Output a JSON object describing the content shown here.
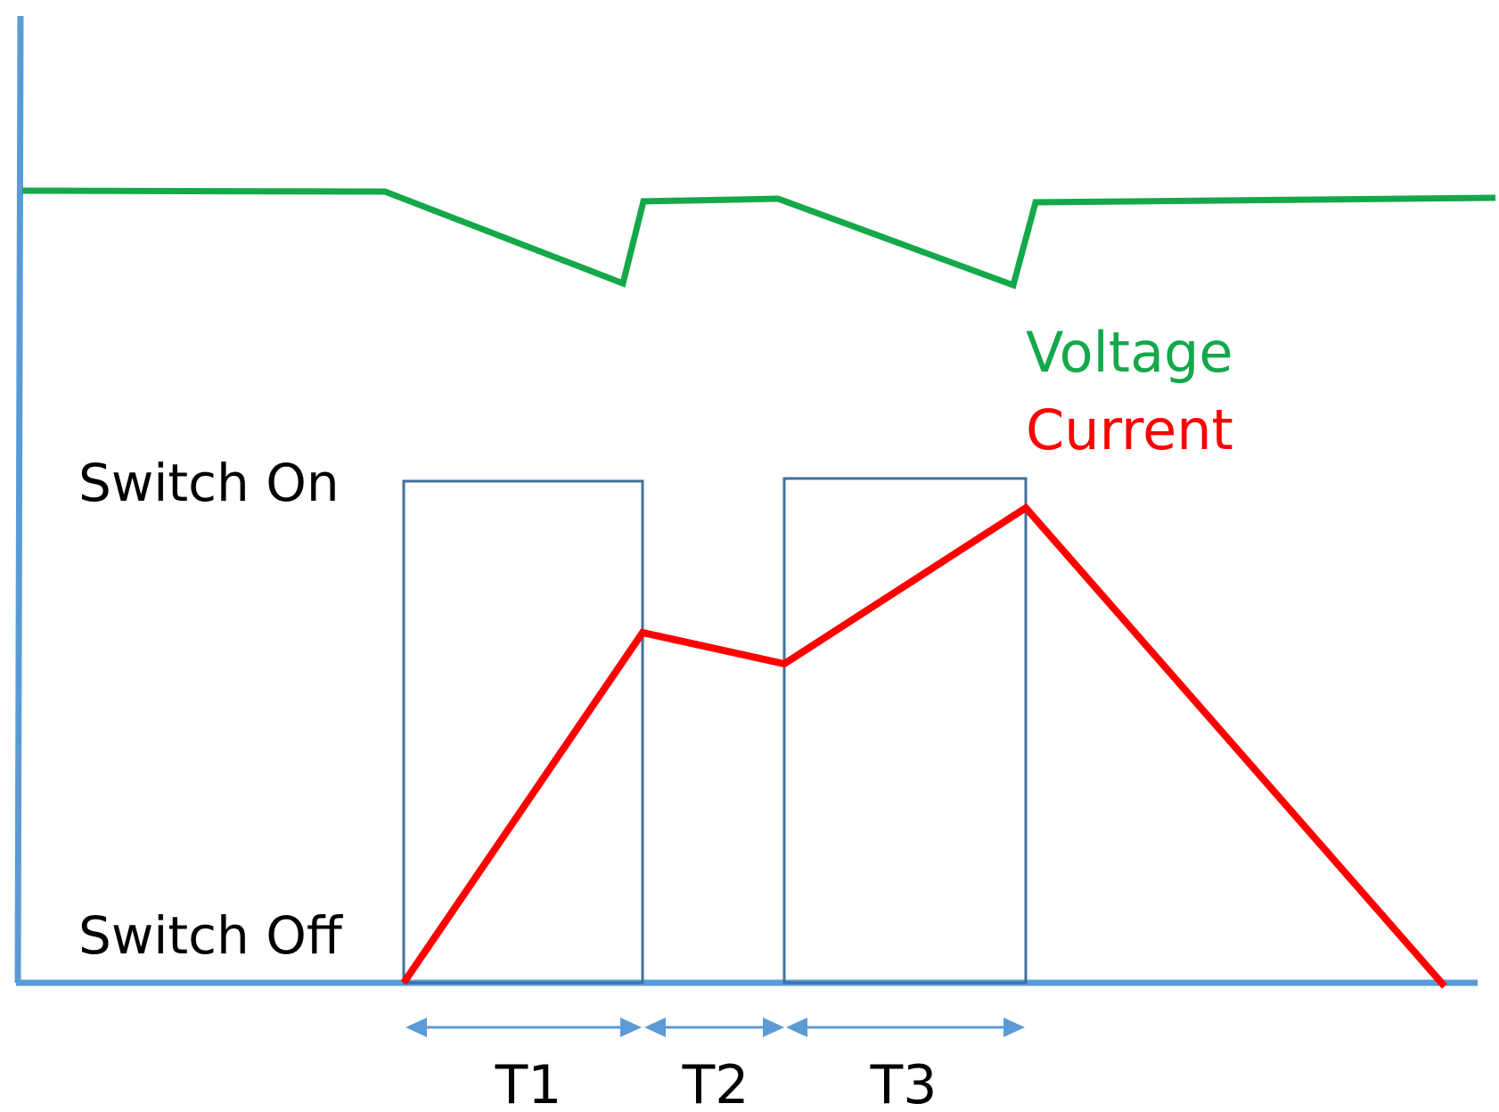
{
  "colors": {
    "axis": "#5B9BD5",
    "voltage": "#14A84A",
    "current": "#FF0000",
    "switch_box": "#41719C",
    "arrow": "#5B9BD5",
    "text": "#000000"
  },
  "legend": {
    "voltage": "Voltage",
    "current": "Current"
  },
  "states": {
    "on": "Switch On",
    "off": "Switch Off"
  },
  "periods": [
    {
      "label": "T1"
    },
    {
      "label": "T2"
    },
    {
      "label": "T3"
    }
  ]
}
